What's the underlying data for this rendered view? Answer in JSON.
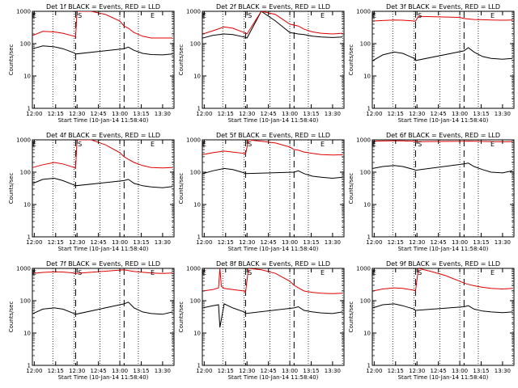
{
  "page": {
    "xtick_labels": [
      "12:00",
      "12:15",
      "12:30",
      "12:45",
      "13:00",
      "13:15",
      "13:30"
    ],
    "xlabel": "Start Time (10-Jan-14 11:58:40)",
    "ylabel": "Counts/sec",
    "ytick_labels": [
      "1",
      "10",
      "100",
      "1000"
    ],
    "colors": {
      "events": "#000000",
      "lld": "#e00000",
      "axes": "#000000"
    }
  },
  "chart_data": [
    {
      "type": "line",
      "title": "Det 1f BLACK = Events, RED = LLD",
      "xlabel": "Start Time (10-Jan-14 11:58:40)",
      "ylabel": "Counts/sec",
      "yscale": "log",
      "xlim": [
        "11:58:40",
        "13:38:00"
      ],
      "ylim": [
        1,
        1000
      ],
      "markers": {
        "E_start": "12:00",
        "S": "12:32",
        "E_end": "13:23"
      },
      "dotted_lines": [
        "12:13",
        "12:28",
        "12:46",
        "13:00",
        "13:13",
        "13:37"
      ],
      "dashed_lines": [
        "12:29",
        "13:03"
      ],
      "series": [
        {
          "name": "BLACK = Events",
          "color": "#000000",
          "x": [
            "11:59",
            "12:06",
            "12:14",
            "12:20",
            "12:28",
            "12:29",
            "13:03",
            "13:06",
            "13:10",
            "13:16",
            "13:22",
            "13:30",
            "13:37"
          ],
          "values": [
            70,
            85,
            80,
            70,
            52,
            48,
            70,
            78,
            62,
            50,
            46,
            45,
            48
          ]
        },
        {
          "name": "RED = LLD",
          "color": "#e00000",
          "x": [
            "11:59",
            "12:06",
            "12:14",
            "12:20",
            "12:28",
            "12:29",
            "12:30",
            "12:31",
            "12:40",
            "12:50",
            "13:00",
            "13:03",
            "13:06",
            "13:10",
            "13:16",
            "13:22",
            "13:30",
            "13:37"
          ],
          "values": [
            180,
            240,
            230,
            210,
            170,
            160,
            1000,
            1000,
            1000,
            800,
            500,
            350,
            300,
            220,
            170,
            150,
            150,
            150
          ]
        }
      ]
    },
    {
      "type": "line",
      "title": "Det 2f BLACK = Events, RED = LLD",
      "xlabel": "Start Time (10-Jan-14 11:58:40)",
      "ylabel": "Counts/sec",
      "yscale": "log",
      "xlim": [
        "11:58:40",
        "13:38:00"
      ],
      "ylim": [
        1,
        1000
      ],
      "markers": {
        "E_start": "12:00",
        "S": "12:32",
        "E_end": "13:23"
      },
      "dotted_lines": [
        "12:13",
        "12:28",
        "12:46",
        "13:00",
        "13:13",
        "13:37"
      ],
      "dashed_lines": [
        "12:29",
        "13:03"
      ],
      "series": [
        {
          "name": "BLACK = Events",
          "color": "#000000",
          "x": [
            "11:59",
            "12:06",
            "12:14",
            "12:20",
            "12:28",
            "12:30",
            "12:40",
            "12:50",
            "13:00",
            "13:06",
            "13:10",
            "13:16",
            "13:22",
            "13:30",
            "13:37"
          ],
          "values": [
            150,
            180,
            200,
            190,
            160,
            150,
            1000,
            500,
            220,
            200,
            190,
            170,
            160,
            155,
            160
          ]
        },
        {
          "name": "RED = LLD",
          "color": "#e00000",
          "x": [
            "11:59",
            "12:06",
            "12:14",
            "12:20",
            "12:28",
            "12:30",
            "12:40",
            "12:50",
            "13:00",
            "13:06",
            "13:10",
            "13:16",
            "13:22",
            "13:30",
            "13:37"
          ],
          "values": [
            200,
            250,
            330,
            300,
            220,
            200,
            1000,
            800,
            400,
            350,
            280,
            230,
            210,
            200,
            210
          ]
        }
      ]
    },
    {
      "type": "line",
      "title": "Det 3f BLACK = Events, RED = LLD",
      "xlabel": "Start Time (10-Jan-14 11:58:40)",
      "ylabel": "Counts/sec",
      "yscale": "log",
      "xlim": [
        "11:58:40",
        "13:38:00"
      ],
      "ylim": [
        1,
        1000
      ],
      "markers": {
        "E_start": "12:00",
        "S": "12:32",
        "E_end": "13:23"
      },
      "dotted_lines": [
        "12:13",
        "12:28",
        "12:46",
        "13:00",
        "13:13",
        "13:37"
      ],
      "dashed_lines": [
        "12:29",
        "13:03"
      ],
      "series": [
        {
          "name": "BLACK = Events",
          "color": "#000000",
          "x": [
            "11:59",
            "12:06",
            "12:14",
            "12:20",
            "12:28",
            "12:29",
            "13:03",
            "13:06",
            "13:10",
            "13:16",
            "13:22",
            "13:30",
            "13:37"
          ],
          "values": [
            30,
            45,
            55,
            50,
            35,
            30,
            60,
            75,
            55,
            40,
            35,
            33,
            35
          ]
        },
        {
          "name": "RED = LLD",
          "color": "#e00000",
          "x": [
            "11:59",
            "12:06",
            "12:14",
            "12:20",
            "12:28",
            "12:29",
            "12:31",
            "13:00",
            "13:03",
            "13:06",
            "13:10",
            "13:16",
            "13:22",
            "13:30",
            "13:37"
          ],
          "values": [
            500,
            520,
            540,
            530,
            500,
            500,
            700,
            650,
            600,
            580,
            560,
            550,
            540,
            530,
            540
          ]
        }
      ]
    },
    {
      "type": "line",
      "title": "Det 4f BLACK = Events, RED = LLD",
      "xlabel": "Start Time (10-Jan-14 11:58:40)",
      "ylabel": "Counts/sec",
      "yscale": "log",
      "xlim": [
        "11:58:40",
        "13:38:00"
      ],
      "ylim": [
        1,
        1000
      ],
      "markers": {
        "E_start": "12:00",
        "S": "12:32",
        "E_end": "13:23"
      },
      "dotted_lines": [
        "12:13",
        "12:28",
        "12:46",
        "13:00",
        "13:13",
        "13:37"
      ],
      "dashed_lines": [
        "12:29",
        "13:03"
      ],
      "series": [
        {
          "name": "BLACK = Events",
          "color": "#000000",
          "x": [
            "11:59",
            "12:06",
            "12:14",
            "12:20",
            "12:28",
            "12:29",
            "13:03",
            "13:06",
            "13:10",
            "13:16",
            "13:22",
            "13:30",
            "13:37"
          ],
          "values": [
            45,
            60,
            65,
            55,
            40,
            38,
            55,
            60,
            45,
            38,
            35,
            33,
            36
          ]
        },
        {
          "name": "RED = LLD",
          "color": "#e00000",
          "x": [
            "11:59",
            "12:06",
            "12:14",
            "12:20",
            "12:28",
            "12:29",
            "12:30",
            "12:31",
            "12:40",
            "12:50",
            "13:00",
            "13:03",
            "13:06",
            "13:10",
            "13:16",
            "13:22",
            "13:30",
            "13:37"
          ],
          "values": [
            140,
            170,
            200,
            180,
            140,
            130,
            1000,
            1000,
            1000,
            700,
            400,
            300,
            250,
            200,
            160,
            140,
            135,
            140
          ]
        }
      ]
    },
    {
      "type": "line",
      "title": "Det 5f BLACK = Events, RED = LLD",
      "xlabel": "Start Time (10-Jan-14 11:58:40)",
      "ylabel": "Counts/sec",
      "yscale": "log",
      "xlim": [
        "11:58:40",
        "13:38:00"
      ],
      "ylim": [
        1,
        1000
      ],
      "markers": {
        "E_start": "12:00",
        "S": "12:32",
        "E_end": "13:23"
      },
      "dotted_lines": [
        "12:13",
        "12:28",
        "12:46",
        "13:00",
        "13:13",
        "13:37"
      ],
      "dashed_lines": [
        "12:29",
        "13:03"
      ],
      "series": [
        {
          "name": "BLACK = Events",
          "color": "#000000",
          "x": [
            "11:59",
            "12:06",
            "12:14",
            "12:20",
            "12:28",
            "12:29",
            "13:03",
            "13:06",
            "13:10",
            "13:16",
            "13:22",
            "13:30",
            "13:37"
          ],
          "values": [
            90,
            110,
            130,
            120,
            95,
            90,
            100,
            110,
            90,
            75,
            70,
            65,
            70
          ]
        },
        {
          "name": "RED = LLD",
          "color": "#e00000",
          "x": [
            "11:59",
            "12:06",
            "12:14",
            "12:20",
            "12:28",
            "12:29",
            "12:31",
            "12:40",
            "12:50",
            "13:00",
            "13:03",
            "13:06",
            "13:10",
            "13:16",
            "13:22",
            "13:30",
            "13:37"
          ],
          "values": [
            350,
            400,
            450,
            420,
            380,
            360,
            1000,
            900,
            800,
            600,
            500,
            480,
            420,
            380,
            350,
            340,
            345
          ]
        }
      ]
    },
    {
      "type": "line",
      "title": "Det 6f BLACK = Events, RED = LLD",
      "xlabel": "Start Time (10-Jan-14 11:58:40)",
      "ylabel": "Counts/sec",
      "yscale": "log",
      "xlim": [
        "11:58:40",
        "13:38:00"
      ],
      "ylim": [
        1,
        1000
      ],
      "markers": {
        "E_start": "12:00",
        "S": "12:32",
        "E_end": "13:23"
      },
      "dotted_lines": [
        "12:13",
        "12:28",
        "12:46",
        "13:00",
        "13:13",
        "13:37"
      ],
      "dashed_lines": [
        "12:29",
        "13:03"
      ],
      "series": [
        {
          "name": "BLACK = Events",
          "color": "#000000",
          "x": [
            "11:59",
            "12:06",
            "12:14",
            "12:20",
            "12:28",
            "12:29",
            "13:03",
            "13:06",
            "13:10",
            "13:16",
            "13:22",
            "13:30",
            "13:37"
          ],
          "values": [
            130,
            150,
            160,
            150,
            120,
            115,
            180,
            190,
            150,
            120,
            100,
            95,
            110
          ]
        },
        {
          "name": "RED = LLD",
          "color": "#e00000",
          "x": [
            "11:59",
            "12:06",
            "12:14",
            "12:20",
            "12:28",
            "12:29",
            "13:03",
            "13:06",
            "13:10",
            "13:16",
            "13:22",
            "13:30",
            "13:37"
          ],
          "values": [
            900,
            920,
            940,
            930,
            900,
            880,
            900,
            910,
            900,
            890,
            880,
            870,
            880
          ]
        }
      ]
    },
    {
      "type": "line",
      "title": "Det 7f BLACK = Events, RED = LLD",
      "xlabel": "Start Time (10-Jan-14 11:58:40)",
      "ylabel": "Counts/sec",
      "yscale": "log",
      "xlim": [
        "11:58:40",
        "13:38:00"
      ],
      "ylim": [
        1,
        1000
      ],
      "markers": {
        "E_start": "12:00",
        "S": "12:32",
        "E_end": "13:23"
      },
      "dotted_lines": [
        "12:13",
        "12:28",
        "12:46",
        "13:00",
        "13:13",
        "13:37"
      ],
      "dashed_lines": [
        "12:29",
        "13:03"
      ],
      "series": [
        {
          "name": "BLACK = Events",
          "color": "#000000",
          "x": [
            "11:59",
            "12:06",
            "12:14",
            "12:20",
            "12:28",
            "12:29",
            "13:03",
            "13:06",
            "13:10",
            "13:16",
            "13:22",
            "13:30",
            "13:37"
          ],
          "values": [
            40,
            55,
            60,
            55,
            40,
            38,
            80,
            90,
            60,
            45,
            40,
            38,
            45
          ]
        },
        {
          "name": "RED = LLD",
          "color": "#e00000",
          "x": [
            "11:59",
            "12:06",
            "12:14",
            "12:20",
            "12:28",
            "12:29",
            "13:03",
            "13:06",
            "13:10",
            "13:16",
            "13:22",
            "13:30",
            "13:37"
          ],
          "values": [
            700,
            750,
            780,
            770,
            720,
            700,
            900,
            850,
            800,
            760,
            720,
            700,
            720
          ]
        }
      ]
    },
    {
      "type": "line",
      "title": "Det 8f BLACK = Events, RED = LLD",
      "xlabel": "Start Time (10-Jan-14 11:58:40)",
      "ylabel": "Counts/sec",
      "yscale": "log",
      "xlim": [
        "11:58:40",
        "13:38:00"
      ],
      "ylim": [
        1,
        1000
      ],
      "markers": {
        "E_start": "12:00",
        "S": "12:32",
        "E_end": "13:23"
      },
      "dotted_lines": [
        "12:13",
        "12:28",
        "12:46",
        "13:00",
        "13:13",
        "13:37"
      ],
      "dashed_lines": [
        "12:29",
        "13:03"
      ],
      "series": [
        {
          "name": "BLACK = Events",
          "color": "#000000",
          "x": [
            "11:59",
            "12:06",
            "12:10",
            "12:11",
            "12:14",
            "12:20",
            "12:28",
            "12:29",
            "13:03",
            "13:06",
            "13:10",
            "13:16",
            "13:22",
            "13:30",
            "13:37"
          ],
          "values": [
            60,
            70,
            75,
            15,
            80,
            60,
            45,
            40,
            60,
            65,
            50,
            45,
            42,
            40,
            45
          ]
        },
        {
          "name": "RED = LLD",
          "color": "#e00000",
          "x": [
            "11:59",
            "12:06",
            "12:10",
            "12:11",
            "12:12",
            "12:14",
            "12:20",
            "12:28",
            "12:29",
            "12:31",
            "12:40",
            "12:50",
            "13:00",
            "13:03",
            "13:06",
            "13:10",
            "13:16",
            "13:22",
            "13:30",
            "13:37"
          ],
          "values": [
            200,
            220,
            250,
            1000,
            280,
            240,
            220,
            200,
            180,
            1000,
            900,
            700,
            400,
            300,
            250,
            200,
            180,
            170,
            165,
            170
          ]
        }
      ]
    },
    {
      "type": "line",
      "title": "Det 9f BLACK = Events, RED = LLD",
      "xlabel": "Start Time (10-Jan-14 11:58:40)",
      "ylabel": "Counts/sec",
      "yscale": "log",
      "xlim": [
        "11:58:40",
        "13:38:00"
      ],
      "ylim": [
        1,
        1000
      ],
      "markers": {
        "E_start": "12:00",
        "S": "12:32",
        "E_end": "13:23"
      },
      "dotted_lines": [
        "12:13",
        "12:28",
        "12:46",
        "13:00",
        "13:13",
        "13:37"
      ],
      "dashed_lines": [
        "12:29",
        "13:03"
      ],
      "series": [
        {
          "name": "BLACK = Events",
          "color": "#000000",
          "x": [
            "11:59",
            "12:06",
            "12:14",
            "12:20",
            "12:28",
            "12:29",
            "13:03",
            "13:06",
            "13:10",
            "13:16",
            "13:22",
            "13:30",
            "13:37"
          ],
          "values": [
            60,
            75,
            80,
            70,
            55,
            50,
            65,
            70,
            55,
            48,
            45,
            43,
            45
          ]
        },
        {
          "name": "RED = LLD",
          "color": "#e00000",
          "x": [
            "11:59",
            "12:06",
            "12:14",
            "12:20",
            "12:28",
            "12:29",
            "12:31",
            "12:40",
            "12:50",
            "13:00",
            "13:03",
            "13:06",
            "13:10",
            "13:16",
            "13:22",
            "13:30",
            "13:37"
          ],
          "values": [
            200,
            230,
            250,
            240,
            210,
            200,
            1000,
            800,
            600,
            400,
            350,
            320,
            290,
            260,
            240,
            230,
            240
          ]
        }
      ]
    }
  ]
}
